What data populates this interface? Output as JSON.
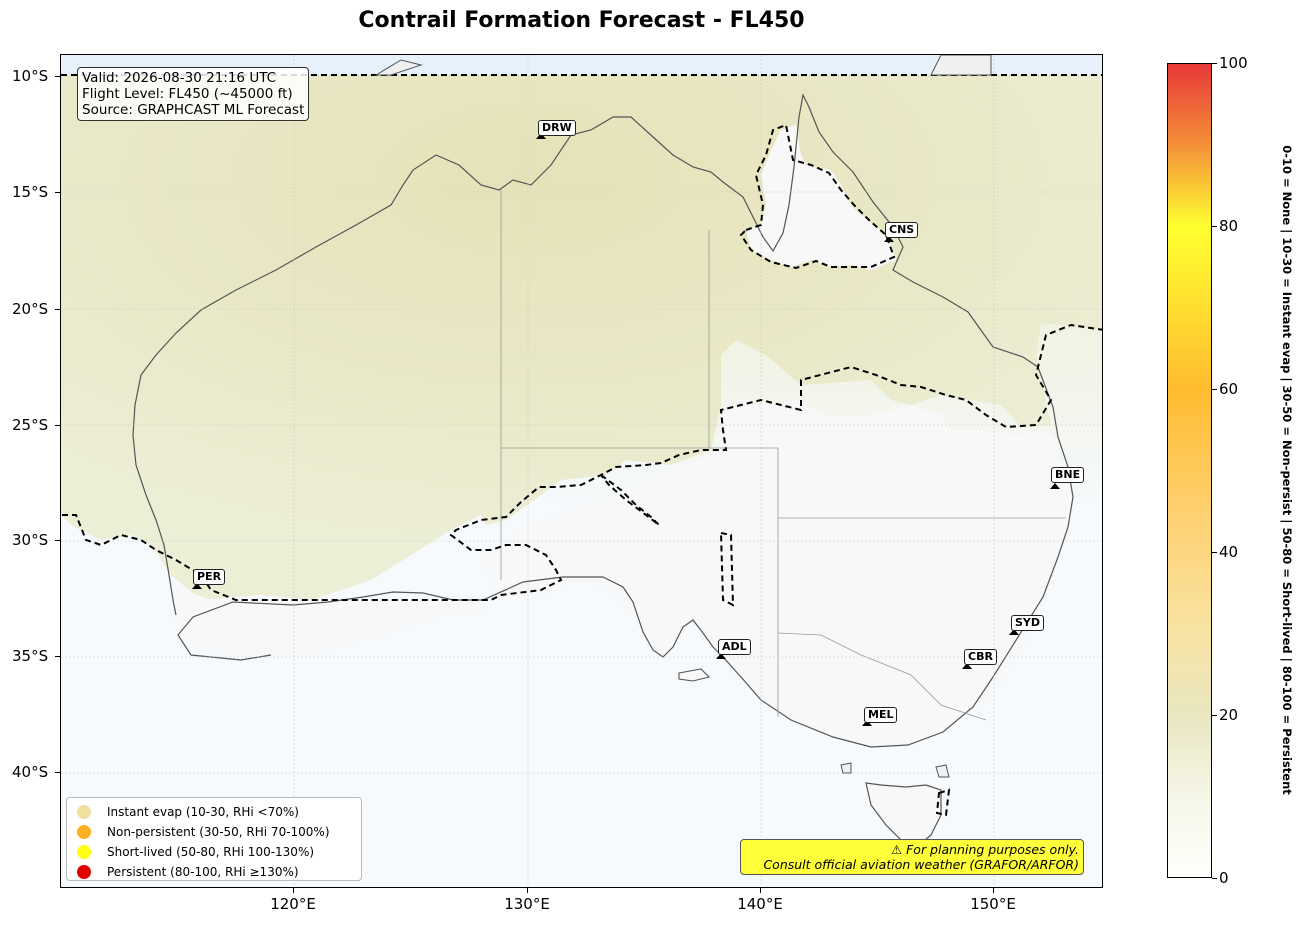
{
  "title": "Contrail Formation Forecast - FL450",
  "info_box": {
    "line1": "Valid: 2026-08-30 21:16 UTC",
    "line2": "Flight Level: FL450 (~45000 ft)",
    "line3": "Source: GRAPHCAST ML Forecast"
  },
  "axes": {
    "lat_labels": [
      "10°S",
      "15°S",
      "20°S",
      "25°S",
      "30°S",
      "35°S",
      "40°S"
    ],
    "lon_labels": [
      "120°E",
      "130°E",
      "140°E",
      "150°E"
    ]
  },
  "cities": [
    {
      "code": "DRW"
    },
    {
      "code": "CNS"
    },
    {
      "code": "BNE"
    },
    {
      "code": "PER"
    },
    {
      "code": "SYD"
    },
    {
      "code": "ADL"
    },
    {
      "code": "CBR"
    },
    {
      "code": "MEL"
    }
  ],
  "legend": [
    {
      "label": "Instant evap (10-30, RHi <70%)",
      "color": "#f0e0a0"
    },
    {
      "label": "Non-persistent (30-50, RHi 70-100%)",
      "color": "#ffb020"
    },
    {
      "label": "Short-lived (50-80, RHi 100-130%)",
      "color": "#ffff10"
    },
    {
      "label": "Persistent (80-100, RHi ≥130%)",
      "color": "#e00000"
    }
  ],
  "disclaimer": {
    "line1": "⚠ For planning purposes only.",
    "line2": "Consult official aviation weather (GRAFOR/ARFOR)"
  },
  "colorbar": {
    "ticks": [
      "0",
      "20",
      "40",
      "60",
      "80",
      "100"
    ],
    "side_label": "0-10 = None  |  10-30 = Instant evap  |  30-50 = Non-persist  |  50-80 = Short-lived  |  80-100 = Persistent"
  },
  "colors": {
    "sea": "#f6fafd",
    "land_none": "#f8f8f8",
    "land_instant": "#e7e6c4",
    "contour": "#000000"
  }
}
